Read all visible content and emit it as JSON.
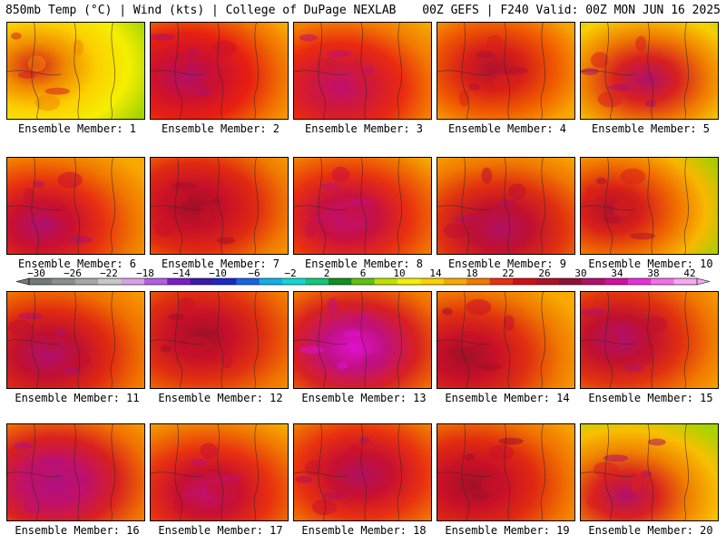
{
  "header": {
    "left": "850mb Temp (°C) | Wind (kts) | College of DuPage NEXLAB",
    "right": "00Z GEFS | F240 Valid: 00Z MON JUN 16 2025"
  },
  "members": [
    {
      "label": "Ensemble Member: 1",
      "palette": [
        "#d42020",
        "#f08a00",
        "#fcd000",
        "#f5ef00",
        "#a8d400"
      ]
    },
    {
      "label": "Ensemble Member: 2",
      "palette": [
        "#b0106a",
        "#cc1030",
        "#e82010",
        "#f07000",
        "#fcb000"
      ]
    },
    {
      "label": "Ensemble Member: 3",
      "palette": [
        "#c01070",
        "#d01838",
        "#ea2a10",
        "#f27a00",
        "#f6a800"
      ]
    },
    {
      "label": "Ensemble Member: 4",
      "palette": [
        "#b01030",
        "#d82018",
        "#f05a00",
        "#f8a000",
        "#fcc000"
      ]
    },
    {
      "label": "Ensemble Member: 5",
      "palette": [
        "#b0106a",
        "#d82020",
        "#f08000",
        "#f8d000",
        "#a8d400"
      ]
    },
    {
      "label": "Ensemble Member: 6",
      "palette": [
        "#b01070",
        "#c81030",
        "#e83010",
        "#f07800",
        "#f8a800"
      ]
    },
    {
      "label": "Ensemble Member: 7",
      "palette": [
        "#a01028",
        "#c81028",
        "#e02a10",
        "#f07800",
        "#f8a800"
      ]
    },
    {
      "label": "Ensemble Member: 8",
      "palette": [
        "#c0107a",
        "#c81040",
        "#e83010",
        "#f07800",
        "#f8c000"
      ]
    },
    {
      "label": "Ensemble Member: 9",
      "palette": [
        "#b01060",
        "#c01030",
        "#e03010",
        "#f07800",
        "#f8a800"
      ]
    },
    {
      "label": "Ensemble Member: 10",
      "palette": [
        "#b01030",
        "#d82018",
        "#f06a00",
        "#f8b800",
        "#a0d000"
      ]
    },
    {
      "label": "Ensemble Member: 11",
      "palette": [
        "#b01070",
        "#c01030",
        "#e02a10",
        "#f07000",
        "#f89800"
      ]
    },
    {
      "label": "Ensemble Member: 12",
      "palette": [
        "#a01028",
        "#c81028",
        "#e03010",
        "#f07000",
        "#f8a000"
      ]
    },
    {
      "label": "Ensemble Member: 13",
      "palette": [
        "#e010d0",
        "#c01080",
        "#d82020",
        "#f07000",
        "#f8a000"
      ]
    },
    {
      "label": "Ensemble Member: 14",
      "palette": [
        "#a01028",
        "#c81028",
        "#e03010",
        "#f07800",
        "#f8a800"
      ]
    },
    {
      "label": "Ensemble Member: 15",
      "palette": [
        "#b01070",
        "#c01030",
        "#e03010",
        "#f07800",
        "#f8a800"
      ]
    },
    {
      "label": "Ensemble Member: 16",
      "palette": [
        "#b01080",
        "#c0106a",
        "#d82020",
        "#f07000",
        "#f8a000"
      ]
    },
    {
      "label": "Ensemble Member: 17",
      "palette": [
        "#c01070",
        "#c81030",
        "#e83010",
        "#f07800",
        "#f8b000"
      ]
    },
    {
      "label": "Ensemble Member: 18",
      "palette": [
        "#b01060",
        "#c81030",
        "#e83010",
        "#f07800",
        "#f8b800"
      ]
    },
    {
      "label": "Ensemble Member: 19",
      "palette": [
        "#a01028",
        "#c81028",
        "#e02a10",
        "#f07000",
        "#f8a000"
      ]
    },
    {
      "label": "Ensemble Member: 20",
      "palette": [
        "#b0106a",
        "#d82020",
        "#f08000",
        "#f8c000",
        "#a8d400"
      ]
    }
  ],
  "colorbar": {
    "labels": [
      "−30",
      "−26",
      "−22",
      "−18",
      "−14",
      "−10",
      "−6",
      "−2",
      "2",
      "6",
      "10",
      "14",
      "18",
      "22",
      "26",
      "30",
      "34",
      "38",
      "42"
    ],
    "colors": [
      "#707b78",
      "#8a8f8c",
      "#a6a6a6",
      "#c7c7c7",
      "#d8a0e8",
      "#b060e0",
      "#7a1ec8",
      "#3a1aa8",
      "#1c28c8",
      "#1a64e0",
      "#10b0e8",
      "#10d8d0",
      "#10c878",
      "#109020",
      "#60c010",
      "#c0e000",
      "#f5ef00",
      "#fcd000",
      "#f8a800",
      "#f07800",
      "#e83010",
      "#d01018",
      "#b01028",
      "#901038",
      "#b0106a",
      "#d010a0",
      "#e830d8",
      "#f070e8",
      "#f4a8f0"
    ]
  }
}
